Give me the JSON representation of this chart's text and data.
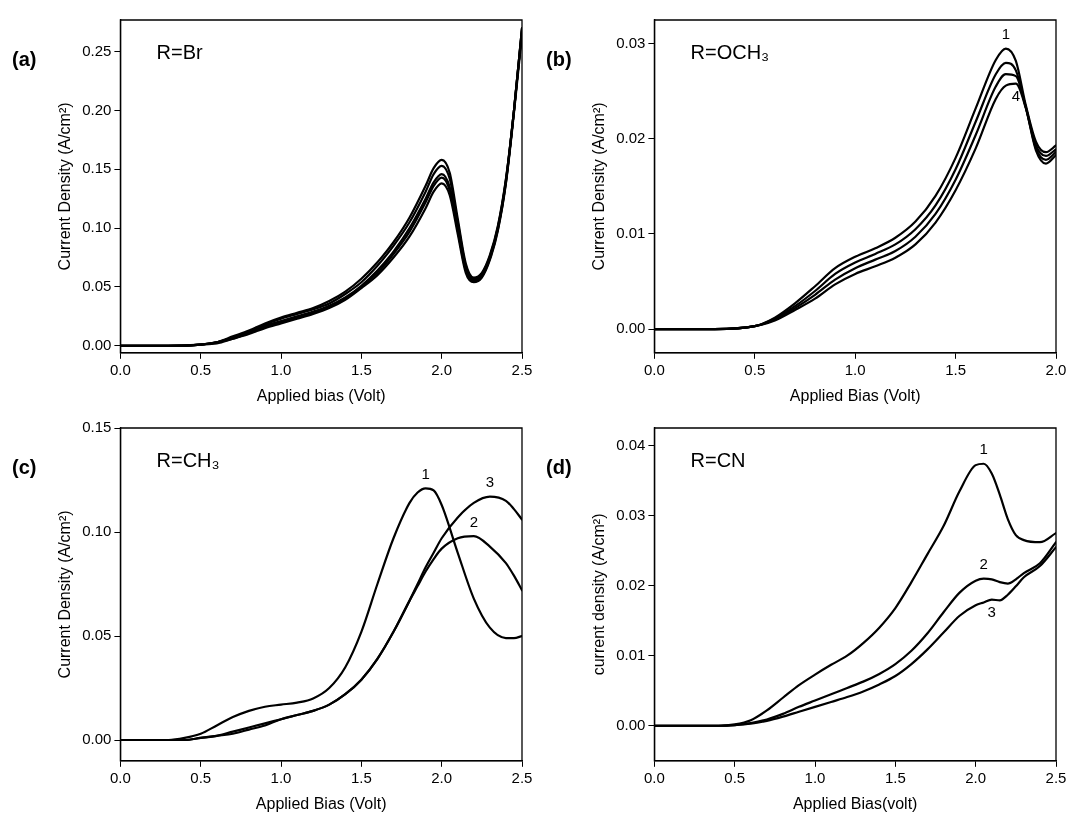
{
  "chart_data": [
    {
      "type": "line",
      "title": "(a)",
      "xlabel": "Applied bias (Volt)",
      "ylabel": "Current Density (A/cm²)",
      "annotations": [
        "R=Br"
      ],
      "x": [
        0,
        0.3,
        0.5,
        0.6,
        0.7,
        0.8,
        0.9,
        1.0,
        1.1,
        1.2,
        1.3,
        1.4,
        1.5,
        1.6,
        1.7,
        1.8,
        1.9,
        1.95,
        2.0,
        2.05,
        2.1,
        2.15,
        2.2,
        2.25,
        2.3,
        2.35,
        2.4,
        2.45,
        2.5
      ],
      "xlim": [
        0,
        2.5
      ],
      "ylim": [
        -0.006,
        0.277
      ],
      "xticks": [
        {
          "value": 0,
          "label": "0.0"
        },
        0.5,
        {
          "value": 1,
          "label": "1.0"
        },
        1.5,
        {
          "value": 2,
          "label": "2.0"
        },
        2.5
      ],
      "yticks": [
        {
          "value": 0,
          "label": "0.00"
        },
        0.05,
        {
          "value": 0.1,
          "label": "0.10"
        },
        0.15,
        {
          "value": 0.2,
          "label": "0.20"
        },
        0.25
      ],
      "grid": false,
      "legend": false,
      "marker": "none",
      "line_style": "solid",
      "series": [
        {
          "color": "#000000",
          "values": [
            0,
            0,
            0.001,
            0.003,
            0.008,
            0.013,
            0.019,
            0.024,
            0.028,
            0.032,
            0.038,
            0.046,
            0.057,
            0.071,
            0.088,
            0.109,
            0.136,
            0.151,
            0.158,
            0.147,
            0.108,
            0.07,
            0.058,
            0.062,
            0.077,
            0.102,
            0.142,
            0.2,
            0.27
          ]
        },
        {
          "color": "#000000",
          "values": [
            0,
            0,
            0.001,
            0.003,
            0.007,
            0.012,
            0.018,
            0.023,
            0.027,
            0.031,
            0.036,
            0.044,
            0.054,
            0.068,
            0.085,
            0.105,
            0.131,
            0.146,
            0.153,
            0.142,
            0.105,
            0.068,
            0.057,
            0.061,
            0.076,
            0.101,
            0.141,
            0.2,
            0.27
          ]
        },
        {
          "color": "#000000",
          "values": [
            0,
            0,
            0.001,
            0.003,
            0.007,
            0.012,
            0.017,
            0.021,
            0.025,
            0.029,
            0.034,
            0.041,
            0.051,
            0.064,
            0.08,
            0.1,
            0.125,
            0.139,
            0.146,
            0.135,
            0.1,
            0.066,
            0.056,
            0.06,
            0.075,
            0.1,
            0.14,
            0.2,
            0.27
          ]
        },
        {
          "color": "#000000",
          "values": [
            0,
            0,
            0.001,
            0.003,
            0.006,
            0.011,
            0.016,
            0.02,
            0.024,
            0.028,
            0.033,
            0.04,
            0.05,
            0.062,
            0.078,
            0.097,
            0.122,
            0.136,
            0.143,
            0.132,
            0.098,
            0.064,
            0.055,
            0.059,
            0.074,
            0.099,
            0.139,
            0.2,
            0.268
          ]
        },
        {
          "color": "#000000",
          "values": [
            0,
            0,
            0.001,
            0.002,
            0.006,
            0.01,
            0.015,
            0.019,
            0.023,
            0.027,
            0.032,
            0.039,
            0.049,
            0.06,
            0.075,
            0.093,
            0.117,
            0.131,
            0.138,
            0.128,
            0.095,
            0.062,
            0.054,
            0.058,
            0.073,
            0.098,
            0.138,
            0.198,
            0.265
          ]
        }
      ]
    },
    {
      "type": "line",
      "title": "(b)",
      "xlabel": "Applied Bias (Volt)",
      "ylabel": "Current Density (A/cm²)",
      "annotations": [
        "R=OCH₃"
      ],
      "x": [
        0,
        0.3,
        0.5,
        0.6,
        0.7,
        0.8,
        0.9,
        1.0,
        1.1,
        1.2,
        1.3,
        1.4,
        1.5,
        1.6,
        1.7,
        1.75,
        1.8,
        1.85,
        1.9,
        1.95,
        2.0
      ],
      "xlim": [
        0,
        2.0
      ],
      "ylim": [
        -0.0025,
        0.0325
      ],
      "xticks": [
        {
          "value": 0,
          "label": "0.0"
        },
        0.5,
        {
          "value": 1,
          "label": "1.0"
        },
        1.5,
        {
          "value": 2,
          "label": "2.0"
        }
      ],
      "yticks": [
        {
          "value": 0,
          "label": "0.00"
        },
        0.01,
        0.02,
        0.03
      ],
      "grid": false,
      "legend": false,
      "marker": "none",
      "line_style": "solid",
      "series": [
        {
          "name": "1",
          "color": "#000000",
          "values": [
            0,
            0,
            0.0003,
            0.0012,
            0.0027,
            0.0045,
            0.0064,
            0.0076,
            0.0085,
            0.0096,
            0.0113,
            0.014,
            0.018,
            0.0232,
            0.0283,
            0.0295,
            0.0282,
            0.0235,
            0.0197,
            0.0186,
            0.0193
          ]
        },
        {
          "color": "#000000",
          "values": [
            0,
            0,
            0.0003,
            0.0011,
            0.0024,
            0.004,
            0.0058,
            0.007,
            0.0079,
            0.0089,
            0.0105,
            0.013,
            0.0168,
            0.0218,
            0.0268,
            0.028,
            0.0272,
            0.0233,
            0.0193,
            0.0182,
            0.0189
          ]
        },
        {
          "color": "#000000",
          "values": [
            0,
            0,
            0.0003,
            0.001,
            0.0022,
            0.0036,
            0.0052,
            0.0064,
            0.0073,
            0.0082,
            0.0097,
            0.0121,
            0.0157,
            0.0204,
            0.0255,
            0.0268,
            0.0266,
            0.0233,
            0.019,
            0.0178,
            0.0186
          ]
        },
        {
          "name": "4",
          "color": "#000000",
          "values": [
            0,
            0,
            0.0003,
            0.0009,
            0.002,
            0.0032,
            0.0047,
            0.0058,
            0.0066,
            0.0075,
            0.0089,
            0.0112,
            0.0146,
            0.019,
            0.0242,
            0.0256,
            0.0258,
            0.0232,
            0.0188,
            0.0174,
            0.0183
          ]
        }
      ]
    },
    {
      "type": "line",
      "title": "(c)",
      "xlabel": "Applied Bias (Volt)",
      "ylabel": "Current Density (A/cm²)",
      "annotations": [
        "R=CH₃"
      ],
      "x": [
        0,
        0.3,
        0.4,
        0.5,
        0.6,
        0.7,
        0.8,
        0.9,
        1.0,
        1.1,
        1.2,
        1.3,
        1.4,
        1.5,
        1.6,
        1.7,
        1.8,
        1.85,
        1.9,
        1.95,
        2.0,
        2.1,
        2.2,
        2.3,
        2.4,
        2.45,
        2.5
      ],
      "xlim": [
        0,
        2.5
      ],
      "ylim": [
        -0.01,
        0.15
      ],
      "xticks": [
        {
          "value": 0,
          "label": "0.0"
        },
        0.5,
        {
          "value": 1,
          "label": "1.0"
        },
        1.5,
        {
          "value": 2,
          "label": "2.0"
        },
        2.5
      ],
      "yticks": [
        {
          "value": 0,
          "label": "0.00"
        },
        0.05,
        {
          "value": 0.1,
          "label": "0.10"
        },
        0.15
      ],
      "grid": false,
      "legend": false,
      "marker": "none",
      "line_style": "solid",
      "series": [
        {
          "name": "1",
          "color": "#000000",
          "values": [
            0,
            0,
            0.001,
            0.003,
            0.007,
            0.011,
            0.014,
            0.016,
            0.017,
            0.018,
            0.02,
            0.025,
            0.035,
            0.052,
            0.075,
            0.097,
            0.114,
            0.119,
            0.121,
            0.12,
            0.113,
            0.09,
            0.068,
            0.054,
            0.049,
            0.049,
            0.05
          ]
        },
        {
          "name": "2",
          "color": "#000000",
          "values": [
            0,
            0,
            0,
            0.001,
            0.002,
            0.004,
            0.006,
            0.008,
            0.01,
            0.012,
            0.014,
            0.017,
            0.022,
            0.029,
            0.039,
            0.052,
            0.067,
            0.074,
            0.081,
            0.087,
            0.092,
            0.097,
            0.098,
            0.093,
            0.085,
            0.079,
            0.072
          ]
        },
        {
          "name": "3",
          "color": "#000000",
          "values": [
            0,
            0,
            0,
            0.001,
            0.002,
            0.003,
            0.005,
            0.007,
            0.01,
            0.012,
            0.014,
            0.017,
            0.022,
            0.029,
            0.039,
            0.052,
            0.067,
            0.075,
            0.083,
            0.09,
            0.097,
            0.107,
            0.114,
            0.117,
            0.115,
            0.111,
            0.106
          ]
        }
      ]
    },
    {
      "type": "line",
      "title": "(d)",
      "xlabel": "Applied Bias(volt)",
      "ylabel": "current density (A/cm²)",
      "annotations": [
        "R=CN"
      ],
      "x": [
        0,
        0.4,
        0.5,
        0.6,
        0.7,
        0.8,
        0.9,
        1.0,
        1.1,
        1.2,
        1.3,
        1.4,
        1.5,
        1.6,
        1.7,
        1.8,
        1.9,
        2.0,
        2.05,
        2.1,
        2.15,
        2.2,
        2.25,
        2.3,
        2.4,
        2.5
      ],
      "xlim": [
        0,
        2.5
      ],
      "ylim": [
        -0.005,
        0.0425
      ],
      "xticks": [
        {
          "value": 0,
          "label": "0.0"
        },
        0.5,
        {
          "value": 1,
          "label": "1.0"
        },
        1.5,
        {
          "value": 2,
          "label": "2.0"
        },
        2.5
      ],
      "yticks": [
        {
          "value": 0,
          "label": "0.00"
        },
        0.01,
        0.02,
        0.03,
        0.04
      ],
      "grid": false,
      "legend": false,
      "marker": "none",
      "line_style": "solid",
      "series": [
        {
          "name": "1",
          "color": "#000000",
          "values": [
            0,
            0,
            0.0002,
            0.0008,
            0.0022,
            0.004,
            0.0058,
            0.0073,
            0.0087,
            0.01,
            0.0118,
            0.014,
            0.0168,
            0.0205,
            0.0245,
            0.0285,
            0.0335,
            0.0372,
            0.0374,
            0.036,
            0.033,
            0.0295,
            0.0272,
            0.0265,
            0.0262,
            0.0275
          ]
        },
        {
          "name": "2",
          "color": "#000000",
          "values": [
            0,
            0,
            0.0001,
            0.0004,
            0.0009,
            0.0017,
            0.0027,
            0.0036,
            0.0045,
            0.0054,
            0.0063,
            0.0074,
            0.0088,
            0.0107,
            0.0132,
            0.0162,
            0.019,
            0.0207,
            0.021,
            0.0209,
            0.0205,
            0.0203,
            0.0209,
            0.0218,
            0.0232,
            0.0262
          ]
        },
        {
          "name": "3",
          "color": "#000000",
          "values": [
            0,
            0,
            0.0001,
            0.0003,
            0.0007,
            0.0013,
            0.002,
            0.0027,
            0.0034,
            0.0041,
            0.0049,
            0.0059,
            0.0071,
            0.0088,
            0.0109,
            0.0133,
            0.0157,
            0.0172,
            0.0176,
            0.018,
            0.0179,
            0.0187,
            0.0199,
            0.0212,
            0.0228,
            0.0255
          ]
        }
      ]
    }
  ]
}
